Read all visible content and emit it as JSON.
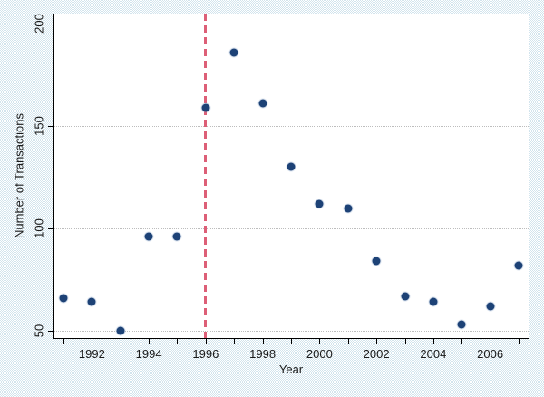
{
  "chart_data": {
    "type": "scatter",
    "xlabel": "Year",
    "ylabel": "Number of Transactions",
    "points": [
      {
        "year": 1991,
        "value": 66
      },
      {
        "year": 1992,
        "value": 64
      },
      {
        "year": 1993,
        "value": 50
      },
      {
        "year": 1994,
        "value": 96
      },
      {
        "year": 1995,
        "value": 96
      },
      {
        "year": 1996,
        "value": 159
      },
      {
        "year": 1997,
        "value": 186
      },
      {
        "year": 1998,
        "value": 161
      },
      {
        "year": 1999,
        "value": 130
      },
      {
        "year": 2000,
        "value": 112
      },
      {
        "year": 2001,
        "value": 110
      },
      {
        "year": 2002,
        "value": 84
      },
      {
        "year": 2003,
        "value": 67
      },
      {
        "year": 2004,
        "value": 64
      },
      {
        "year": 2005,
        "value": 53
      },
      {
        "year": 2006,
        "value": 62
      },
      {
        "year": 2007,
        "value": 82
      }
    ],
    "x_ticks": [
      {
        "year": 1991,
        "label": ""
      },
      {
        "year": 1992,
        "label": "1992"
      },
      {
        "year": 1993,
        "label": ""
      },
      {
        "year": 1994,
        "label": "1994"
      },
      {
        "year": 1995,
        "label": ""
      },
      {
        "year": 1996,
        "label": "1996"
      },
      {
        "year": 1997,
        "label": ""
      },
      {
        "year": 1998,
        "label": "1998"
      },
      {
        "year": 1999,
        "label": ""
      },
      {
        "year": 2000,
        "label": "2000"
      },
      {
        "year": 2001,
        "label": ""
      },
      {
        "year": 2002,
        "label": "2002"
      },
      {
        "year": 2003,
        "label": ""
      },
      {
        "year": 2004,
        "label": "2004"
      },
      {
        "year": 2005,
        "label": ""
      },
      {
        "year": 2006,
        "label": "2006"
      },
      {
        "year": 2007,
        "label": ""
      }
    ],
    "y_ticks": [
      {
        "value": 50,
        "label": "50"
      },
      {
        "value": 100,
        "label": "100"
      },
      {
        "value": 150,
        "label": "150"
      },
      {
        "value": 200,
        "label": "200"
      }
    ],
    "xlim": [
      1990.65,
      2007.35
    ],
    "ylim": [
      46.5,
      205
    ],
    "grid": "horizontal-dotted",
    "legend": "none",
    "reference_line": {
      "x": 1996,
      "orientation": "vertical",
      "style": "dashed"
    },
    "colors": {
      "marker": "#1d4276",
      "reference_line": "#dd5f77",
      "grid": "#bdbdbd",
      "axis": "#000000",
      "plot_background": "#ffffff",
      "page_background_checker": [
        "#ffffff",
        "#d2e4ed"
      ]
    }
  }
}
